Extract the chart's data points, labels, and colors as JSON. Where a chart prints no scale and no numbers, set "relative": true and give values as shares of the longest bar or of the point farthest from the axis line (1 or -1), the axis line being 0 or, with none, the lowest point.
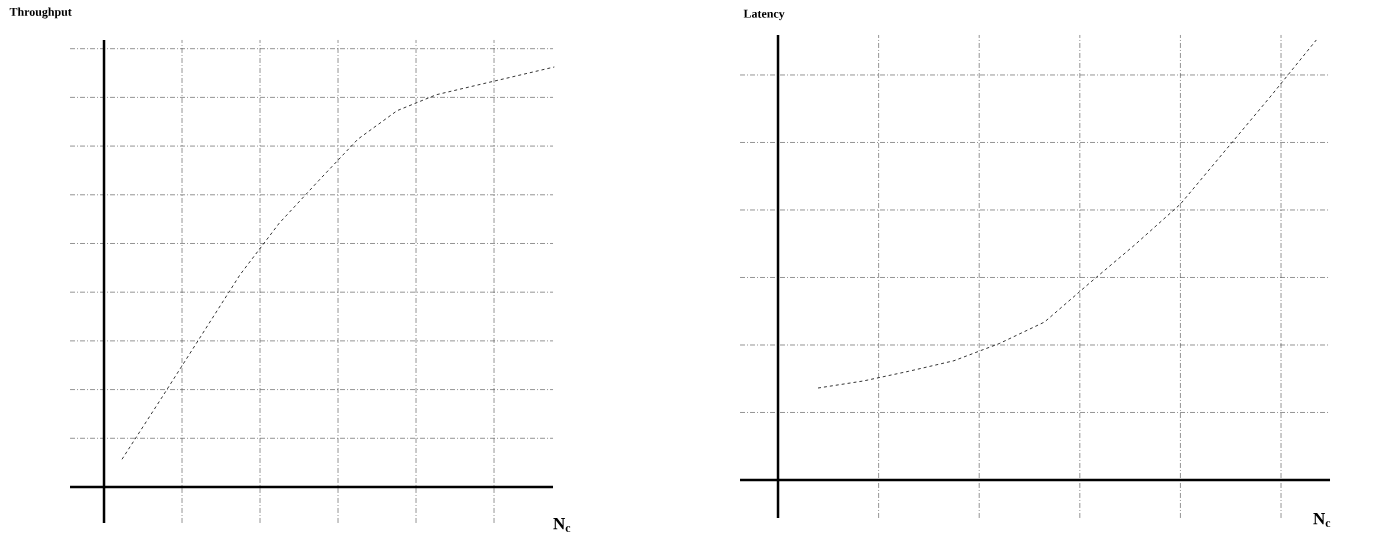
{
  "chart_data": [
    {
      "type": "line",
      "title": "Throughput",
      "xlabel": "N$_{c}$",
      "relative": true,
      "grid": true,
      "line_style": "dashed",
      "categories": [
        null,
        null,
        null,
        null,
        null,
        null,
        null,
        null,
        null,
        null,
        null,
        null
      ],
      "series": [
        {
          "color": "#000000",
          "values": [
            0.066,
            0.211,
            0.358,
            0.505,
            0.628,
            0.729,
            0.828,
            0.896,
            0.934,
            0.956,
            0.978,
            1
          ]
        }
      ]
    },
    {
      "type": "line",
      "title": "Latency",
      "xlabel": "N$_{c}$",
      "relative": true,
      "grid": true,
      "line_style": "dashed",
      "categories": [
        null,
        null,
        null,
        null,
        null,
        null,
        null,
        null,
        null,
        null,
        null,
        null
      ],
      "series": [
        {
          "color": "#000000",
          "values": [
            0.209,
            0.225,
            0.247,
            0.271,
            0.31,
            0.359,
            0.448,
            0.535,
            0.627,
            0.75,
            0.873,
            1
          ]
        }
      ]
    }
  ]
}
